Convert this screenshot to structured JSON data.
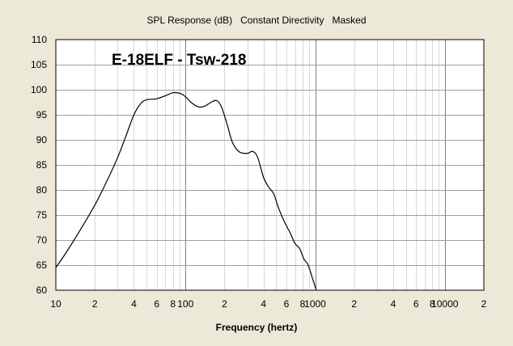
{
  "chart_data": {
    "type": "line",
    "title": "SPL Response (dB)   Constant Directivity   Masked",
    "xlabel": "Frequency (hertz)",
    "ylabel": "",
    "annotation": "E-18ELF - Tsw-218",
    "x_scale": "log",
    "xlim": [
      10,
      20000
    ],
    "ylim": [
      60,
      110
    ],
    "grid": true,
    "x_ticks": [
      {
        "value": 10,
        "label": "10"
      },
      {
        "value": 20,
        "label": "2"
      },
      {
        "value": 40,
        "label": "4"
      },
      {
        "value": 60,
        "label": "6"
      },
      {
        "value": 80,
        "label": "8"
      },
      {
        "value": 100,
        "label": "100"
      },
      {
        "value": 200,
        "label": "2"
      },
      {
        "value": 400,
        "label": "4"
      },
      {
        "value": 600,
        "label": "6"
      },
      {
        "value": 800,
        "label": "8"
      },
      {
        "value": 1000,
        "label": "1000"
      },
      {
        "value": 2000,
        "label": "2"
      },
      {
        "value": 4000,
        "label": "4"
      },
      {
        "value": 6000,
        "label": "6"
      },
      {
        "value": 8000,
        "label": "8"
      },
      {
        "value": 10000,
        "label": "10000"
      },
      {
        "value": 20000,
        "label": "2"
      }
    ],
    "y_ticks": [
      60,
      65,
      70,
      75,
      80,
      85,
      90,
      95,
      100,
      105,
      110
    ],
    "series": [
      {
        "color": "#000000",
        "points": [
          [
            10,
            64.5
          ],
          [
            12,
            67.5
          ],
          [
            15,
            71.5
          ],
          [
            20,
            77
          ],
          [
            25,
            82
          ],
          [
            30,
            86.5
          ],
          [
            35,
            91
          ],
          [
            40,
            95
          ],
          [
            45,
            97.2
          ],
          [
            50,
            98
          ],
          [
            60,
            98.2
          ],
          [
            70,
            98.8
          ],
          [
            80,
            99.4
          ],
          [
            90,
            99.3
          ],
          [
            100,
            98.6
          ],
          [
            110,
            97.5
          ],
          [
            125,
            96.6
          ],
          [
            140,
            96.7
          ],
          [
            160,
            97.6
          ],
          [
            175,
            97.8
          ],
          [
            190,
            96.5
          ],
          [
            210,
            93
          ],
          [
            230,
            89.5
          ],
          [
            260,
            87.6
          ],
          [
            300,
            87.3
          ],
          [
            330,
            87.7
          ],
          [
            360,
            86.5
          ],
          [
            400,
            82.5
          ],
          [
            440,
            80.5
          ],
          [
            480,
            79.2
          ],
          [
            520,
            76.5
          ],
          [
            580,
            73.6
          ],
          [
            640,
            71.5
          ],
          [
            700,
            69.3
          ],
          [
            760,
            68.3
          ],
          [
            820,
            66.2
          ],
          [
            880,
            65.1
          ],
          [
            950,
            62.5
          ],
          [
            1000,
            60.7
          ],
          [
            1020,
            60
          ]
        ]
      }
    ]
  }
}
